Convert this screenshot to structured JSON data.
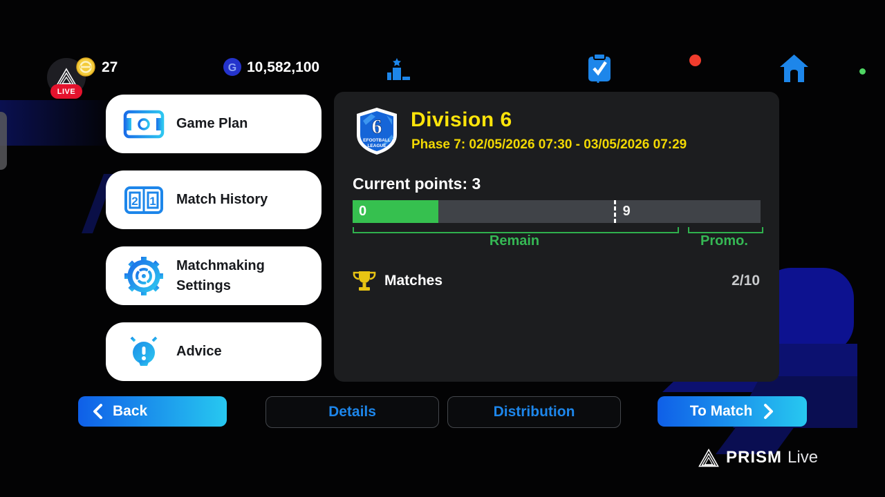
{
  "topbar": {
    "live_label": "LIVE",
    "coins": "27",
    "gp_amount": "10,582,100",
    "gp_symbol": "G",
    "ranking_label": "Ranking",
    "missions_label": "Missions"
  },
  "sidebar": {
    "items": [
      {
        "label": "Game Plan"
      },
      {
        "label": "Match History"
      },
      {
        "label": "Matchmaking Settings"
      },
      {
        "label": "Advice"
      }
    ]
  },
  "panel": {
    "badge": {
      "number": "6",
      "line1": "EFOOTBALL",
      "line2": "LEAGUE"
    },
    "title": "Division 6",
    "phase": "Phase 7: 02/05/2026 07:30 - 03/05/2026 07:29",
    "current_points": "Current points: 3",
    "progress": {
      "start_label": "0",
      "promo_threshold_label": "9",
      "remain_label": "Remain",
      "promo_label": "Promo.",
      "fill_percent": 21,
      "divider_percent": 64
    },
    "matches": {
      "label": "Matches",
      "count": "2/10"
    }
  },
  "footer": {
    "back": "Back",
    "details": "Details",
    "distribution": "Distribution",
    "to_match": "To Match"
  },
  "watermark": {
    "brand": "PRISM",
    "suffix": "Live"
  },
  "colors": {
    "accent_blue": "#1d86ea",
    "title_yellow": "#ffe40a",
    "progress_green": "#36c04f",
    "button_gradient_start": "#0f5fe8",
    "button_gradient_end": "#27c8f0",
    "live_red": "#e5132d",
    "notification_red": "#f03c2d",
    "status_green_dot": "#4fd663",
    "decor_navy": "#0d1290"
  }
}
